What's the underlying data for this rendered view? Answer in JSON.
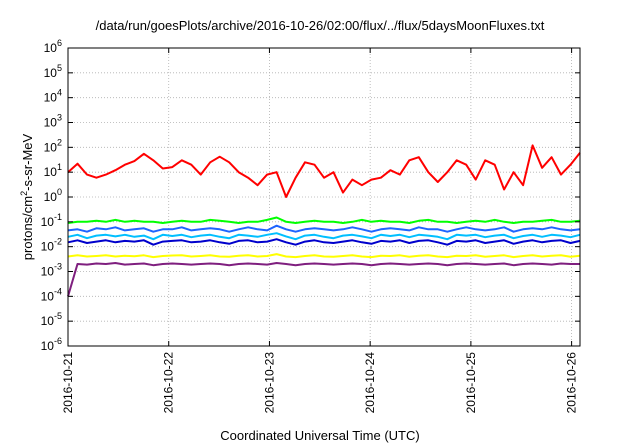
{
  "chart_data": {
    "type": "line",
    "title": "/data/run/goesPlots/archive/2016-10-26/02:00/flux/../flux/5daysMoonFluxes.txt",
    "xlabel": "Coordinated Universal Time (UTC)",
    "ylabel": {
      "base": "protons/cm",
      "exp": "2",
      "rest": "-s-sr-MeV"
    },
    "yscale": "log",
    "ylim": [
      1e-06,
      1000000.0
    ],
    "xlim": [
      "2016-10-21",
      "2016-10-26T02:00"
    ],
    "grid": true,
    "y_ticks": [
      {
        "base": "10",
        "exp": "-6",
        "value": 1e-06
      },
      {
        "base": "10",
        "exp": "-5",
        "value": 1e-05
      },
      {
        "base": "10",
        "exp": "-4",
        "value": 0.0001
      },
      {
        "base": "10",
        "exp": "-3",
        "value": 0.001
      },
      {
        "base": "10",
        "exp": "-2",
        "value": 0.01
      },
      {
        "base": "10",
        "exp": "-1",
        "value": 0.1
      },
      {
        "base": "10",
        "exp": "0",
        "value": 1.0
      },
      {
        "base": "10",
        "exp": "1",
        "value": 10.0
      },
      {
        "base": "10",
        "exp": "2",
        "value": 100.0
      },
      {
        "base": "10",
        "exp": "3",
        "value": 1000.0
      },
      {
        "base": "10",
        "exp": "4",
        "value": 10000.0
      },
      {
        "base": "10",
        "exp": "5",
        "value": 100000.0
      },
      {
        "base": "10",
        "exp": "6",
        "value": 1000000.0
      }
    ],
    "x_ticks": [
      "2016-10-21",
      "2016-10-22",
      "2016-10-23",
      "2016-10-24",
      "2016-10-25",
      "2016-10-26"
    ],
    "series": [
      {
        "color": "#ff0000",
        "values": [
          10,
          22,
          8,
          6,
          8,
          12,
          20,
          28,
          55,
          30,
          14,
          16,
          30,
          20,
          8,
          25,
          42,
          25,
          10,
          6,
          3,
          8,
          10,
          1,
          6,
          25,
          20,
          6,
          10,
          1.5,
          5,
          3,
          5,
          6,
          12,
          8,
          30,
          40,
          10,
          4,
          10,
          30,
          20,
          5,
          30,
          20,
          2,
          10,
          3,
          120,
          15,
          40,
          8,
          20,
          60
        ]
      },
      {
        "color": "#00ff00",
        "values": [
          0.09,
          0.1,
          0.1,
          0.11,
          0.1,
          0.12,
          0.1,
          0.11,
          0.1,
          0.1,
          0.09,
          0.1,
          0.11,
          0.1,
          0.1,
          0.12,
          0.11,
          0.1,
          0.09,
          0.1,
          0.1,
          0.12,
          0.15,
          0.1,
          0.09,
          0.1,
          0.11,
          0.1,
          0.1,
          0.09,
          0.1,
          0.12,
          0.1,
          0.11,
          0.1,
          0.1,
          0.09,
          0.11,
          0.12,
          0.1,
          0.1,
          0.09,
          0.1,
          0.11,
          0.1,
          0.12,
          0.1,
          0.09,
          0.1,
          0.1,
          0.11,
          0.12,
          0.1,
          0.1,
          0.11
        ]
      },
      {
        "color": "#1e64ff",
        "values": [
          0.045,
          0.05,
          0.04,
          0.055,
          0.05,
          0.06,
          0.045,
          0.05,
          0.055,
          0.04,
          0.05,
          0.05,
          0.06,
          0.045,
          0.05,
          0.055,
          0.05,
          0.04,
          0.05,
          0.06,
          0.05,
          0.045,
          0.07,
          0.05,
          0.04,
          0.05,
          0.055,
          0.05,
          0.045,
          0.05,
          0.06,
          0.05,
          0.04,
          0.05,
          0.055,
          0.05,
          0.045,
          0.06,
          0.05,
          0.05,
          0.04,
          0.05,
          0.06,
          0.05,
          0.045,
          0.05,
          0.06,
          0.04,
          0.05,
          0.055,
          0.05,
          0.06,
          0.05,
          0.045,
          0.05
        ]
      },
      {
        "color": "#00bfff",
        "values": [
          0.025,
          0.03,
          0.022,
          0.028,
          0.03,
          0.026,
          0.03,
          0.025,
          0.028,
          0.02,
          0.03,
          0.027,
          0.03,
          0.024,
          0.028,
          0.03,
          0.025,
          0.022,
          0.03,
          0.028,
          0.025,
          0.03,
          0.035,
          0.026,
          0.02,
          0.028,
          0.03,
          0.025,
          0.022,
          0.028,
          0.03,
          0.026,
          0.022,
          0.03,
          0.027,
          0.03,
          0.024,
          0.03,
          0.028,
          0.025,
          0.02,
          0.03,
          0.028,
          0.03,
          0.024,
          0.028,
          0.03,
          0.022,
          0.027,
          0.03,
          0.025,
          0.03,
          0.028,
          0.024,
          0.03
        ]
      },
      {
        "color": "#0000cc",
        "values": [
          0.015,
          0.018,
          0.014,
          0.016,
          0.018,
          0.015,
          0.017,
          0.016,
          0.018,
          0.012,
          0.016,
          0.017,
          0.018,
          0.015,
          0.016,
          0.018,
          0.015,
          0.013,
          0.017,
          0.018,
          0.015,
          0.016,
          0.02,
          0.015,
          0.012,
          0.016,
          0.018,
          0.015,
          0.014,
          0.016,
          0.018,
          0.015,
          0.013,
          0.017,
          0.016,
          0.018,
          0.014,
          0.017,
          0.018,
          0.015,
          0.012,
          0.017,
          0.016,
          0.018,
          0.014,
          0.016,
          0.018,
          0.013,
          0.016,
          0.018,
          0.015,
          0.017,
          0.018,
          0.014,
          0.017
        ]
      },
      {
        "color": "#ffff00",
        "values": [
          0.004,
          0.0045,
          0.004,
          0.0042,
          0.0045,
          0.004,
          0.0043,
          0.0041,
          0.0045,
          0.0038,
          0.0042,
          0.0044,
          0.0045,
          0.004,
          0.0042,
          0.0045,
          0.004,
          0.0039,
          0.0043,
          0.0045,
          0.004,
          0.0042,
          0.005,
          0.004,
          0.0038,
          0.0042,
          0.0045,
          0.004,
          0.0039,
          0.0042,
          0.0045,
          0.004,
          0.0038,
          0.0043,
          0.0042,
          0.0045,
          0.0039,
          0.0043,
          0.0045,
          0.004,
          0.0038,
          0.0043,
          0.0042,
          0.0045,
          0.0039,
          0.0042,
          0.0045,
          0.0038,
          0.0042,
          0.0045,
          0.004,
          0.0043,
          0.0045,
          0.0039,
          0.0043
        ]
      },
      {
        "color": "#7f1f7f",
        "values": [
          0.0001,
          0.002,
          0.0019,
          0.0021,
          0.002,
          0.0022,
          0.0019,
          0.002,
          0.0021,
          0.0018,
          0.002,
          0.0021,
          0.002,
          0.0019,
          0.002,
          0.0021,
          0.002,
          0.0018,
          0.002,
          0.0021,
          0.002,
          0.0019,
          0.0022,
          0.002,
          0.0018,
          0.002,
          0.0021,
          0.002,
          0.0019,
          0.002,
          0.0021,
          0.002,
          0.0018,
          0.002,
          0.0021,
          0.002,
          0.0019,
          0.002,
          0.0021,
          0.002,
          0.0018,
          0.002,
          0.0021,
          0.002,
          0.0019,
          0.002,
          0.0021,
          0.0018,
          0.002,
          0.0021,
          0.002,
          0.0019,
          0.0021,
          0.002,
          0.002
        ]
      }
    ]
  }
}
